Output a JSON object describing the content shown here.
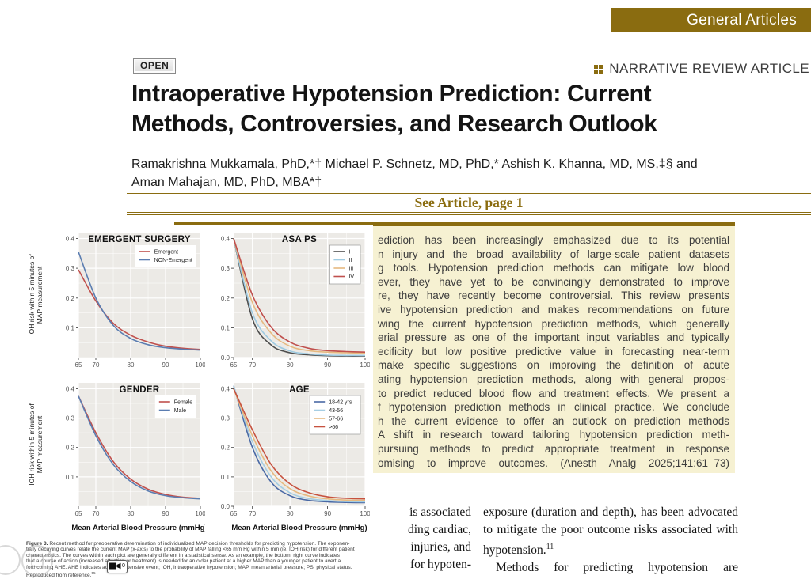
{
  "banner": {
    "label": "General Articles",
    "bg_color": "#8a6c10"
  },
  "badges": {
    "open": "OPEN",
    "article_type": "NARRATIVE REVIEW ARTICLE"
  },
  "title_lines": [
    "Intraoperative Hypotension Prediction: Current",
    "Methods, Controversies, and Research Outlook"
  ],
  "author_lines": [
    "Ramakrishna Mukkamala, PhD,*† Michael P. Schnetz, MD, PhD,* Ashish K. Khanna, MD, MS,‡§ and",
    "Aman Mahajan, MD, PhD, MBA*†"
  ],
  "see_article": "See Article, page 1",
  "colors": {
    "gold": "#8a6c10",
    "abstract_bg": "#f6f1d2",
    "panel_grey": "#eceae6"
  },
  "abstract": {
    "visible_lines": [
      "ediction has been increasingly emphasized due to its potential",
      "n injury and the broad availability of large-scale patient datasets",
      "g tools. Hypotension prediction methods can mitigate low blood",
      "ever, they have yet to be convincingly demonstrated to improve",
      "re, they have recently become controversial. This review presents",
      "ive hypotension prediction and makes recommendations on future",
      "wing the current hypotension prediction methods, which generally",
      "erial pressure as one of the important input variables and typically",
      "ecificity but low positive predictive value in forecasting near-term",
      "make specific suggestions on improving the definition of acute",
      "ating hypotension prediction methods, along with general propos-",
      "to predict reduced blood flow and treatment effects. We present a",
      "f hypotension prediction methods in clinical practice. We conclude",
      "h the current evidence to offer an outlook on prediction methods",
      "A shift in research toward tailoring hypotension prediction meth-",
      "pursuing methods to predict appropriate treatment in response",
      "omising to improve outcomes.  (Anesth Analg 2025;141:61–73)"
    ]
  },
  "figure_caption": {
    "label": "Figure 3.",
    "lines": [
      " Recent method for preoperative determination of individualized MAP decision thresholds for predicting hypotension. The exponen-",
      "tially decaying curves relate the current MAP (x-axis) to the probability of MAP falling <65 mm Hg within 5 min (ie, IOH risk) for different patient",
      "characteristics. The curves within each plot are generally different in a statistical sense. As an example, the bottom, right curve indicates",
      "that a course of action (increased attention or treatment) is needed for an older patient at a higher MAP than a younger patient to avert a",
      "forthcoming AHE. AHE indicates acute hypotensive event; IOH, intraoperative hypotension; MAP, mean arterial pressure; PS, physical status.",
      "Reproduced from reference."
    ],
    "reference_sup": "55"
  },
  "body_text": {
    "left_column_lines": [
      "is associated",
      "ding cardiac,",
      "injuries, and",
      "for hypoten-"
    ],
    "right_column_lines": [
      "exposure (duration and depth), has been advocated",
      "to mitigate the poor outcome risks associated with",
      "hypotension.",
      "Methods for predicting hypotension are attractive"
    ],
    "citation_sup": "11"
  },
  "overlays": {
    "camera_widget_badge": "0"
  },
  "chart_data": [
    {
      "type": "line",
      "title": "EMERGENT SURGERY",
      "ylabel_lines": [
        "IOH risk within 5 minutes of",
        "MAP measurement"
      ],
      "xlabel": "",
      "x": [
        65,
        70,
        75,
        80,
        85,
        90,
        95,
        100
      ],
      "xticks": [
        65,
        70,
        80,
        90,
        100
      ],
      "yticks": [
        0.1,
        0.2,
        0.3,
        0.4
      ],
      "ylim": [
        0.0,
        0.42
      ],
      "legend_border": false,
      "series": [
        {
          "name": "Emergent",
          "color": "#c0504d",
          "values": [
            0.295,
            0.19,
            0.115,
            0.075,
            0.052,
            0.038,
            0.031,
            0.027
          ]
        },
        {
          "name": "NON-Emergent",
          "color": "#5b7db1",
          "values": [
            0.355,
            0.2,
            0.108,
            0.064,
            0.043,
            0.033,
            0.028,
            0.025
          ]
        }
      ]
    },
    {
      "type": "line",
      "title": "ASA PS",
      "ylabel_lines": [],
      "xlabel": "",
      "x": [
        65,
        70,
        75,
        80,
        85,
        90,
        95,
        100
      ],
      "xticks": [
        65,
        70,
        80,
        90,
        100
      ],
      "yticks": [
        0.0,
        0.1,
        0.2,
        0.3,
        0.4
      ],
      "ylim": [
        0.0,
        0.42
      ],
      "legend_border": true,
      "series": [
        {
          "name": "I",
          "color": "#4d4d4d",
          "values": [
            0.4,
            0.13,
            0.042,
            0.016,
            0.009,
            0.006,
            0.005,
            0.005
          ]
        },
        {
          "name": "II",
          "color": "#9ecae1",
          "values": [
            0.4,
            0.15,
            0.056,
            0.022,
            0.012,
            0.008,
            0.007,
            0.007
          ]
        },
        {
          "name": "III",
          "color": "#e6b980",
          "values": [
            0.4,
            0.185,
            0.082,
            0.038,
            0.023,
            0.018,
            0.016,
            0.015
          ]
        },
        {
          "name": "IV",
          "color": "#c0504d",
          "values": [
            0.4,
            0.21,
            0.102,
            0.052,
            0.031,
            0.023,
            0.02,
            0.018
          ]
        }
      ]
    },
    {
      "type": "line",
      "title": "GENDER",
      "ylabel_lines": [
        "IOH risk within 5 minutes of",
        "MAP measurement"
      ],
      "xlabel": "Mean Arterial Blood Pressure (mmHg)",
      "x": [
        65,
        70,
        75,
        80,
        85,
        90,
        95,
        100
      ],
      "xticks": [
        65,
        70,
        80,
        90,
        100
      ],
      "yticks": [
        0.1,
        0.2,
        0.3,
        0.4
      ],
      "ylim": [
        0.0,
        0.42
      ],
      "legend_border": false,
      "series": [
        {
          "name": "Female",
          "color": "#c0504d",
          "values": [
            0.375,
            0.25,
            0.152,
            0.092,
            0.058,
            0.04,
            0.031,
            0.027
          ]
        },
        {
          "name": "Male",
          "color": "#5b7db1",
          "values": [
            0.375,
            0.24,
            0.142,
            0.084,
            0.052,
            0.036,
            0.029,
            0.025
          ]
        }
      ]
    },
    {
      "type": "line",
      "title": "AGE",
      "ylabel_lines": [],
      "xlabel": "Mean Arterial Blood Pressure (mmHg)",
      "x": [
        65,
        70,
        75,
        80,
        85,
        90,
        95,
        100
      ],
      "xticks": [
        65,
        70,
        80,
        90,
        100
      ],
      "yticks": [
        0.0,
        0.1,
        0.2,
        0.3,
        0.4
      ],
      "ylim": [
        0.0,
        0.42
      ],
      "legend_border": true,
      "series": [
        {
          "name": "18-42 yrs",
          "color": "#4a69a5",
          "values": [
            0.41,
            0.2,
            0.082,
            0.036,
            0.02,
            0.015,
            0.013,
            0.012
          ]
        },
        {
          "name": "43-56",
          "color": "#a6cee3",
          "values": [
            0.41,
            0.22,
            0.1,
            0.046,
            0.026,
            0.019,
            0.016,
            0.015
          ]
        },
        {
          "name": "57-66",
          "color": "#e6b980",
          "values": [
            0.4,
            0.24,
            0.12,
            0.06,
            0.035,
            0.025,
            0.021,
            0.02
          ]
        },
        {
          "name": ">66",
          "color": "#c7523f",
          "values": [
            0.4,
            0.26,
            0.142,
            0.076,
            0.046,
            0.032,
            0.027,
            0.025
          ]
        }
      ]
    }
  ]
}
